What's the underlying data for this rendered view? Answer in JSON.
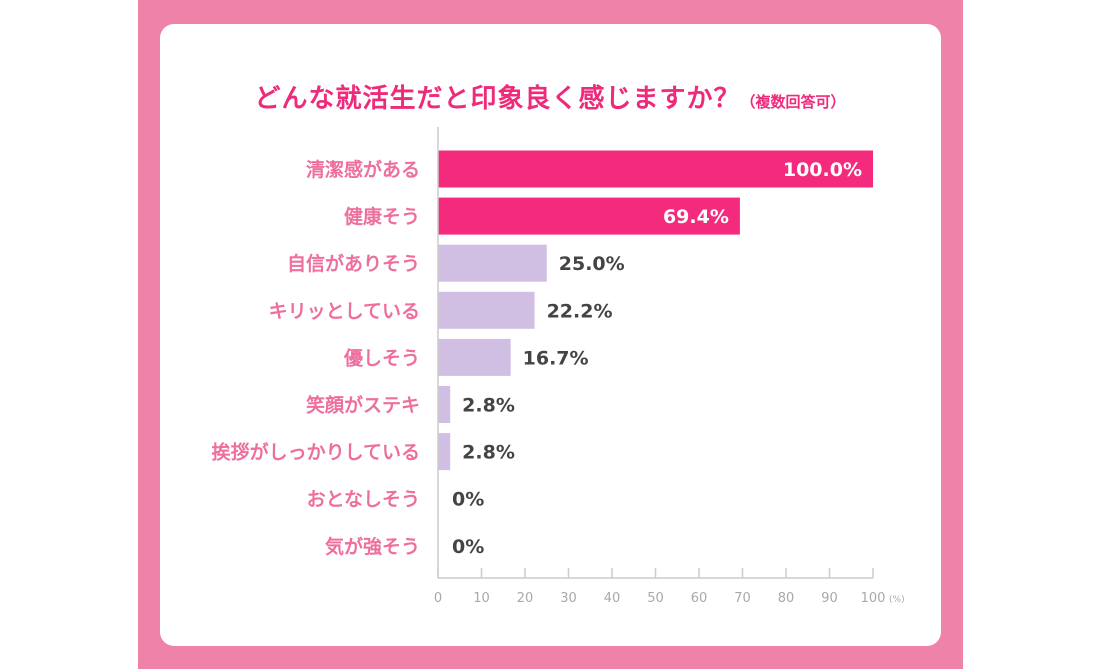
{
  "colors": {
    "frame": "#ee82a8",
    "title": "#ee2a7b",
    "category_label": "#ee6f9e",
    "bar_highlight": "#f42a7c",
    "bar_normal": "#d0bfe3",
    "value_on_bar": "#ffffff",
    "value_outside": "#444444",
    "axis": "#cccccc"
  },
  "chart_data": {
    "type": "bar",
    "orientation": "horizontal",
    "title": "どんな就活生だと印象良く感じますか？",
    "subtitle": "（複数回答可）",
    "categories": [
      "清潔感がある",
      "健康そう",
      "自信がありそう",
      "キリッとしている",
      "優しそう",
      "笑顔がステキ",
      "挨拶がしっかりしている",
      "おとなしそう",
      "気が強そう"
    ],
    "values": [
      100.0,
      69.4,
      25.0,
      22.2,
      16.7,
      2.8,
      2.8,
      0,
      0
    ],
    "value_labels": [
      "100.0%",
      "69.4%",
      "25.0%",
      "22.2%",
      "16.7%",
      "2.8%",
      "2.8%",
      "0%",
      "0%"
    ],
    "highlighted": [
      true,
      true,
      false,
      false,
      false,
      false,
      false,
      false,
      false
    ],
    "xlim": [
      0,
      100
    ],
    "x_ticks": [
      "0",
      "10",
      "20",
      "30",
      "40",
      "50",
      "60",
      "70",
      "80",
      "90",
      "100"
    ],
    "x_unit": "(%)",
    "grid": false
  }
}
